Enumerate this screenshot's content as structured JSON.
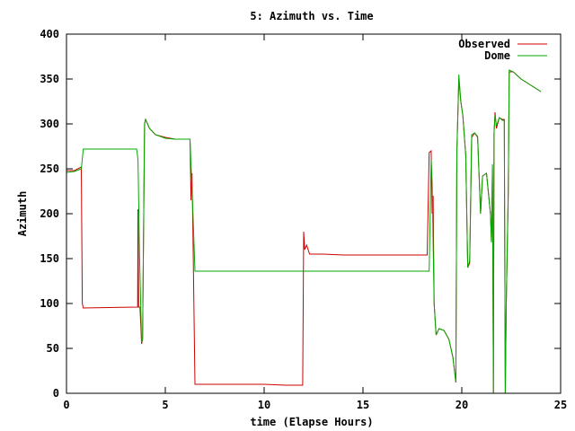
{
  "chart_data": {
    "type": "line",
    "title": "5: Azimuth vs. Time",
    "xlabel": "time (Elapse Hours)",
    "ylabel": "Azimuth",
    "xlim": [
      0,
      25
    ],
    "ylim": [
      0,
      400
    ],
    "xticks": [
      0,
      5,
      10,
      15,
      20,
      25
    ],
    "yticks": [
      0,
      50,
      100,
      150,
      200,
      250,
      300,
      350,
      400
    ],
    "grid": false,
    "legend_position": "top-right",
    "series": [
      {
        "name": "Observed",
        "color": "#cc0000",
        "points": [
          [
            0.0,
            248
          ],
          [
            0.4,
            248
          ],
          [
            0.75,
            252
          ],
          [
            0.8,
            100
          ],
          [
            0.85,
            95
          ],
          [
            3.6,
            96
          ],
          [
            3.62,
            205
          ],
          [
            3.65,
            96
          ],
          [
            3.72,
            96
          ],
          [
            3.8,
            55
          ],
          [
            3.85,
            60
          ],
          [
            3.95,
            300
          ],
          [
            4.0,
            305
          ],
          [
            4.2,
            295
          ],
          [
            4.5,
            288
          ],
          [
            5.0,
            285
          ],
          [
            5.5,
            283
          ],
          [
            6.25,
            283
          ],
          [
            6.3,
            215
          ],
          [
            6.35,
            245
          ],
          [
            6.4,
            175
          ],
          [
            6.5,
            10
          ],
          [
            10.0,
            10
          ],
          [
            11.1,
            9
          ],
          [
            11.95,
            9
          ],
          [
            12.0,
            180
          ],
          [
            12.05,
            160
          ],
          [
            12.15,
            165
          ],
          [
            12.3,
            155
          ],
          [
            13.0,
            155
          ],
          [
            14.0,
            154
          ],
          [
            18.25,
            154
          ],
          [
            18.35,
            268
          ],
          [
            18.45,
            270
          ],
          [
            18.5,
            200
          ],
          [
            18.55,
            220
          ],
          [
            18.6,
            100
          ],
          [
            18.7,
            65
          ],
          [
            18.85,
            72
          ],
          [
            19.1,
            70
          ],
          [
            19.35,
            60
          ],
          [
            19.55,
            40
          ],
          [
            19.7,
            12
          ],
          [
            19.75,
            268
          ],
          [
            19.85,
            350
          ],
          [
            19.95,
            325
          ],
          [
            20.05,
            310
          ],
          [
            20.2,
            265
          ],
          [
            20.3,
            140
          ],
          [
            20.4,
            145
          ],
          [
            20.5,
            285
          ],
          [
            20.65,
            290
          ],
          [
            20.8,
            285
          ],
          [
            20.95,
            200
          ],
          [
            21.05,
            242
          ],
          [
            21.25,
            245
          ],
          [
            21.45,
            200
          ],
          [
            21.5,
            168
          ],
          [
            21.55,
            250
          ],
          [
            21.6,
            0
          ],
          [
            21.63,
            290
          ],
          [
            21.68,
            313
          ],
          [
            21.75,
            295
          ],
          [
            21.9,
            307
          ],
          [
            22.05,
            305
          ],
          [
            22.15,
            305
          ],
          [
            22.2,
            0
          ],
          [
            22.25,
            100
          ],
          [
            22.35,
            220
          ],
          [
            22.4,
            358
          ],
          [
            22.6,
            358
          ],
          [
            23.0,
            350
          ],
          [
            23.5,
            343
          ],
          [
            24.0,
            336
          ]
        ]
      },
      {
        "name": "Dome",
        "color": "#00aa00",
        "points": [
          [
            0.0,
            246
          ],
          [
            0.4,
            247
          ],
          [
            0.75,
            250
          ],
          [
            0.85,
            272
          ],
          [
            3.55,
            272
          ],
          [
            3.62,
            260
          ],
          [
            3.7,
            150
          ],
          [
            3.8,
            57
          ],
          [
            3.85,
            60
          ],
          [
            3.95,
            300
          ],
          [
            4.0,
            305
          ],
          [
            4.2,
            295
          ],
          [
            4.5,
            288
          ],
          [
            5.0,
            284
          ],
          [
            5.5,
            283
          ],
          [
            6.25,
            283
          ],
          [
            6.4,
            200
          ],
          [
            6.5,
            136
          ],
          [
            10.0,
            136
          ],
          [
            12.0,
            136
          ],
          [
            14.0,
            136
          ],
          [
            18.35,
            136
          ],
          [
            18.45,
            260
          ],
          [
            18.5,
            235
          ],
          [
            18.6,
            100
          ],
          [
            18.7,
            65
          ],
          [
            18.85,
            72
          ],
          [
            19.1,
            70
          ],
          [
            19.35,
            60
          ],
          [
            19.55,
            40
          ],
          [
            19.7,
            12
          ],
          [
            19.75,
            268
          ],
          [
            19.85,
            355
          ],
          [
            19.95,
            325
          ],
          [
            20.05,
            310
          ],
          [
            20.2,
            265
          ],
          [
            20.3,
            140
          ],
          [
            20.4,
            148
          ],
          [
            20.5,
            288
          ],
          [
            20.65,
            290
          ],
          [
            20.8,
            286
          ],
          [
            20.95,
            200
          ],
          [
            21.05,
            242
          ],
          [
            21.25,
            245
          ],
          [
            21.45,
            200
          ],
          [
            21.5,
            168
          ],
          [
            21.55,
            255
          ],
          [
            21.6,
            0
          ],
          [
            21.63,
            290
          ],
          [
            21.68,
            310
          ],
          [
            21.75,
            298
          ],
          [
            21.9,
            307
          ],
          [
            22.05,
            304
          ],
          [
            22.15,
            304
          ],
          [
            22.2,
            0
          ],
          [
            22.25,
            100
          ],
          [
            22.35,
            225
          ],
          [
            22.4,
            360
          ],
          [
            22.6,
            358
          ],
          [
            23.0,
            350
          ],
          [
            23.5,
            343
          ],
          [
            24.0,
            336
          ]
        ]
      }
    ]
  }
}
